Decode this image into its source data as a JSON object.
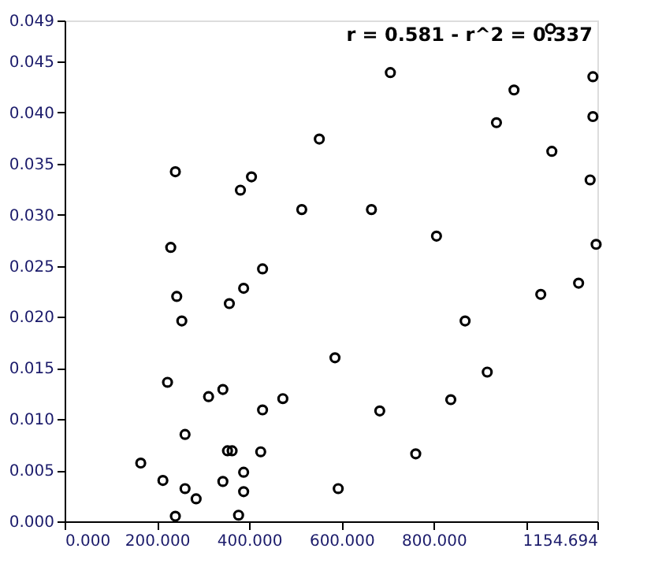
{
  "chart_data": {
    "type": "scatter",
    "x": [
      165,
      213,
      240,
      261,
      261,
      285,
      223,
      243,
      254,
      230,
      240,
      312,
      343,
      343,
      353,
      363,
      357,
      388,
      388,
      388,
      377,
      425,
      429,
      473,
      429,
      381,
      405,
      514,
      552,
      706,
      665,
      806,
      974,
      936,
      1056,
      1053,
      1145,
      1145,
      1139,
      1152,
      1114,
      1032,
      868,
      586,
      916,
      837,
      683,
      761,
      593
    ],
    "series": [
      {
        "color": "#000000",
        "values": [
          0.0057,
          0.004,
          0.0005,
          0.0032,
          0.0085,
          0.0022,
          0.0136,
          0.022,
          0.0196,
          0.0268,
          0.0342,
          0.0122,
          0.0129,
          0.0039,
          0.0069,
          0.0069,
          0.0213,
          0.0228,
          0.0048,
          0.0029,
          0.0006,
          0.0068,
          0.0109,
          0.012,
          0.0247,
          0.0324,
          0.0337,
          0.0305,
          0.0374,
          0.0439,
          0.0305,
          0.0279,
          0.0422,
          0.039,
          0.0362,
          0.0482,
          0.0435,
          0.0396,
          0.0334,
          0.0271,
          0.0233,
          0.0222,
          0.0196,
          0.016,
          0.0146,
          0.0119,
          0.0108,
          0.0066,
          0.0032
        ]
      }
    ],
    "xlim": [
      0,
      1154.694
    ],
    "xticks": [
      {
        "value": 0,
        "label": "0.000"
      },
      {
        "value": 200,
        "label": "200.000"
      },
      {
        "value": 400,
        "label": "400.000"
      },
      {
        "value": 600,
        "label": "600.000"
      },
      {
        "value": 800,
        "label": "800.000"
      },
      {
        "value": 1000,
        "label": null
      },
      {
        "value": 1154.694,
        "label": "1154.694"
      }
    ],
    "ylim": [
      0,
      0.049
    ],
    "yticks": [
      {
        "value": 0,
        "label": "0.000"
      },
      {
        "value": 0.005,
        "label": "0.005"
      },
      {
        "value": 0.01,
        "label": "0.010"
      },
      {
        "value": 0.015,
        "label": "0.015"
      },
      {
        "value": 0.02,
        "label": "0.020"
      },
      {
        "value": 0.025,
        "label": "0.025"
      },
      {
        "value": 0.03,
        "label": "0.030"
      },
      {
        "value": 0.035,
        "label": "0.035"
      },
      {
        "value": 0.04,
        "label": "0.040"
      },
      {
        "value": 0.045,
        "label": "0.045"
      },
      {
        "value": 0.049,
        "label": "0.049"
      }
    ],
    "annotations": [
      "r = 0.581 - r^2 = 0.337"
    ],
    "marker": "circle",
    "grid": false
  }
}
